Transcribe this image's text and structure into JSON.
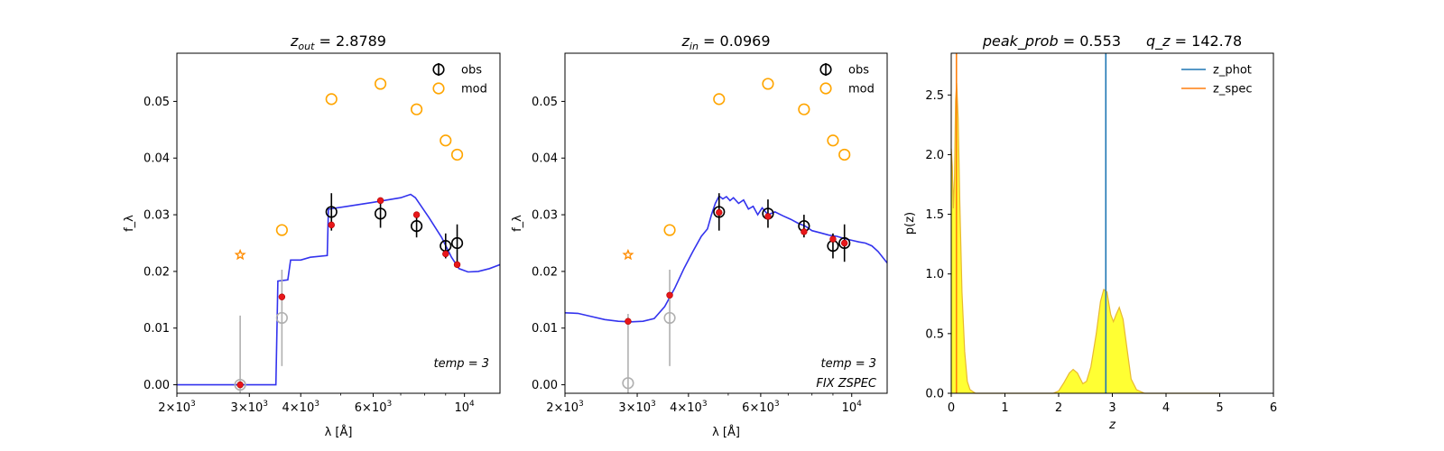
{
  "chart_data": [
    {
      "type": "scatter",
      "panel": "left",
      "title": "z_out = 2.8789",
      "title_parts": {
        "var": "z",
        "sub": "out",
        "rest": " = 2.8789"
      },
      "xlabel": "λ [Å]",
      "ylabel": "f_λ",
      "xscale": "log",
      "xlim": [
        2000,
        12200
      ],
      "ylim": [
        -0.0015,
        0.0585
      ],
      "xticks": [
        {
          "value": 2000,
          "mant": "2",
          "exp": "3"
        },
        {
          "value": 3000,
          "mant": "3",
          "exp": "3"
        },
        {
          "value": 4000,
          "mant": "4",
          "exp": "3"
        },
        {
          "value": 6000,
          "mant": "6",
          "exp": "3"
        },
        {
          "value": 10000,
          "mant": "10",
          "exp": "4",
          "plain": true
        }
      ],
      "yticks": [
        0.0,
        0.01,
        0.02,
        0.03,
        0.04,
        0.05
      ],
      "ytick_labels": [
        "0.00",
        "0.01",
        "0.02",
        "0.03",
        "0.04",
        "0.05"
      ],
      "legend": {
        "position": "top-right",
        "entries": [
          "obs",
          "mod"
        ]
      },
      "annotations": [
        "temp = 3"
      ],
      "obs": [
        {
          "x": 2850,
          "y": 0.0,
          "err": 0.0122,
          "faded": true
        },
        {
          "x": 3600,
          "y": 0.0118,
          "err": 0.0085,
          "faded": true
        },
        {
          "x": 4750,
          "y": 0.0305,
          "err": 0.0033
        },
        {
          "x": 6250,
          "y": 0.0302,
          "err": 0.0025
        },
        {
          "x": 7650,
          "y": 0.028,
          "err": 0.002
        },
        {
          "x": 9000,
          "y": 0.0245,
          "err": 0.0022
        },
        {
          "x": 9600,
          "y": 0.025,
          "err": 0.0033
        }
      ],
      "mod": [
        {
          "x": 3600,
          "y": 0.0273
        },
        {
          "x": 4750,
          "y": 0.0504
        },
        {
          "x": 6250,
          "y": 0.0531
        },
        {
          "x": 7650,
          "y": 0.0486
        },
        {
          "x": 9000,
          "y": 0.0431
        },
        {
          "x": 9600,
          "y": 0.0406
        }
      ],
      "star": [
        {
          "x": 2850,
          "y": 0.0229
        }
      ],
      "model_points": [
        {
          "x": 2850,
          "y": 0.0
        },
        {
          "x": 3600,
          "y": 0.0155
        },
        {
          "x": 4750,
          "y": 0.0282
        },
        {
          "x": 6250,
          "y": 0.0325
        },
        {
          "x": 7650,
          "y": 0.03
        },
        {
          "x": 9000,
          "y": 0.0231
        },
        {
          "x": 9600,
          "y": 0.0212
        }
      ],
      "sed": [
        [
          2000,
          0.0
        ],
        [
          3480,
          0.0
        ],
        [
          3520,
          0.0183
        ],
        [
          3720,
          0.0185
        ],
        [
          3780,
          0.022
        ],
        [
          4000,
          0.022
        ],
        [
          4220,
          0.0225
        ],
        [
          4640,
          0.0228
        ],
        [
          4670,
          0.031
        ],
        [
          5200,
          0.0315
        ],
        [
          6000,
          0.0322
        ],
        [
          7000,
          0.033
        ],
        [
          7400,
          0.0336
        ],
        [
          7600,
          0.033
        ],
        [
          8200,
          0.0295
        ],
        [
          8800,
          0.026
        ],
        [
          9300,
          0.0225
        ],
        [
          9700,
          0.0205
        ],
        [
          10200,
          0.0199
        ],
        [
          10800,
          0.02
        ],
        [
          11500,
          0.0205
        ],
        [
          12200,
          0.0212
        ]
      ]
    },
    {
      "type": "scatter",
      "panel": "middle",
      "title": "z_in = 0.0969",
      "title_parts": {
        "var": "z",
        "sub": "in",
        "rest": " = 0.0969"
      },
      "xlabel": "λ [Å]",
      "ylabel": "f_λ",
      "xscale": "log",
      "xlim": [
        2000,
        12200
      ],
      "ylim": [
        -0.0015,
        0.0585
      ],
      "xticks": [
        {
          "value": 2000,
          "mant": "2",
          "exp": "3"
        },
        {
          "value": 3000,
          "mant": "3",
          "exp": "3"
        },
        {
          "value": 4000,
          "mant": "4",
          "exp": "3"
        },
        {
          "value": 6000,
          "mant": "6",
          "exp": "3"
        },
        {
          "value": 10000,
          "mant": "10",
          "exp": "4",
          "plain": true
        }
      ],
      "yticks": [
        0.0,
        0.01,
        0.02,
        0.03,
        0.04,
        0.05
      ],
      "ytick_labels": [
        "0.00",
        "0.01",
        "0.02",
        "0.03",
        "0.04",
        "0.05"
      ],
      "legend": {
        "position": "top-right",
        "entries": [
          "obs",
          "mod"
        ]
      },
      "annotations": [
        "temp = 3",
        "FIX ZSPEC"
      ],
      "obs": [
        {
          "x": 2850,
          "y": 0.0003,
          "err": 0.0122,
          "faded": true
        },
        {
          "x": 3600,
          "y": 0.0118,
          "err": 0.0085,
          "faded": true
        },
        {
          "x": 4750,
          "y": 0.0305,
          "err": 0.0033
        },
        {
          "x": 6250,
          "y": 0.0302,
          "err": 0.0025
        },
        {
          "x": 7650,
          "y": 0.028,
          "err": 0.002
        },
        {
          "x": 9000,
          "y": 0.0245,
          "err": 0.0022
        },
        {
          "x": 9600,
          "y": 0.025,
          "err": 0.0033
        }
      ],
      "mod": [
        {
          "x": 3600,
          "y": 0.0273
        },
        {
          "x": 4750,
          "y": 0.0504
        },
        {
          "x": 6250,
          "y": 0.0531
        },
        {
          "x": 7650,
          "y": 0.0486
        },
        {
          "x": 9000,
          "y": 0.0431
        },
        {
          "x": 9600,
          "y": 0.0406
        }
      ],
      "star": [
        {
          "x": 2850,
          "y": 0.0229
        }
      ],
      "model_points": [
        {
          "x": 2850,
          "y": 0.0112
        },
        {
          "x": 3600,
          "y": 0.0158
        },
        {
          "x": 4750,
          "y": 0.0304
        },
        {
          "x": 6250,
          "y": 0.0297
        },
        {
          "x": 7650,
          "y": 0.027
        },
        {
          "x": 9000,
          "y": 0.0257
        },
        {
          "x": 9600,
          "y": 0.025
        }
      ],
      "sed": [
        [
          2000,
          0.0127
        ],
        [
          2150,
          0.0126
        ],
        [
          2300,
          0.0121
        ],
        [
          2500,
          0.0115
        ],
        [
          2700,
          0.0112
        ],
        [
          2900,
          0.0111
        ],
        [
          3100,
          0.0112
        ],
        [
          3300,
          0.0117
        ],
        [
          3500,
          0.0138
        ],
        [
          3700,
          0.017
        ],
        [
          3900,
          0.0205
        ],
        [
          4100,
          0.0235
        ],
        [
          4300,
          0.0262
        ],
        [
          4450,
          0.0275
        ],
        [
          4550,
          0.03
        ],
        [
          4650,
          0.032
        ],
        [
          4750,
          0.0333
        ],
        [
          4850,
          0.0328
        ],
        [
          4950,
          0.0332
        ],
        [
          5050,
          0.0325
        ],
        [
          5150,
          0.033
        ],
        [
          5300,
          0.032
        ],
        [
          5450,
          0.0326
        ],
        [
          5600,
          0.031
        ],
        [
          5750,
          0.0315
        ],
        [
          5900,
          0.03
        ],
        [
          6050,
          0.0312
        ],
        [
          6250,
          0.03
        ],
        [
          6500,
          0.0305
        ],
        [
          6800,
          0.0298
        ],
        [
          7100,
          0.0292
        ],
        [
          7400,
          0.0285
        ],
        [
          7700,
          0.028
        ],
        [
          8000,
          0.0272
        ],
        [
          8400,
          0.0268
        ],
        [
          8800,
          0.0264
        ],
        [
          9200,
          0.0262
        ],
        [
          9600,
          0.0258
        ],
        [
          10000,
          0.0255
        ],
        [
          10400,
          0.0252
        ],
        [
          10800,
          0.025
        ],
        [
          11200,
          0.0245
        ],
        [
          11600,
          0.0235
        ],
        [
          12200,
          0.0215
        ]
      ]
    },
    {
      "type": "area",
      "panel": "right",
      "title": "peak_prob = 0.553     q_z = 142.78",
      "title_parts": [
        {
          "label": "peak_prob",
          "value": " = 0.553"
        },
        {
          "label": "q_z",
          "value": " = 142.78"
        }
      ],
      "xlabel": "z",
      "ylabel": "p(z)",
      "xlim": [
        0,
        6
      ],
      "ylim": [
        0,
        2.85
      ],
      "xticks": [
        0,
        1,
        2,
        3,
        4,
        5,
        6
      ],
      "xtick_labels": [
        "0",
        "1",
        "2",
        "3",
        "4",
        "5",
        "6"
      ],
      "yticks": [
        0.0,
        0.5,
        1.0,
        1.5,
        2.0,
        2.5
      ],
      "ytick_labels": [
        "0.0",
        "0.5",
        "1.0",
        "1.5",
        "2.0",
        "2.5"
      ],
      "legend": {
        "position": "top-right",
        "entries": [
          "z_phot",
          "z_spec"
        ]
      },
      "z_phot": 2.8789,
      "z_spec": 0.0969,
      "colors": {
        "z_phot": "#1f77b4",
        "z_spec": "#ff7f0e",
        "fill": "#ffff33",
        "edge": "#e8b830"
      },
      "pdf": [
        [
          0.0,
          2.05
        ],
        [
          0.02,
          1.9
        ],
        [
          0.04,
          1.55
        ],
        [
          0.06,
          1.8
        ],
        [
          0.08,
          2.45
        ],
        [
          0.1,
          2.6
        ],
        [
          0.13,
          2.3
        ],
        [
          0.16,
          1.6
        ],
        [
          0.2,
          0.85
        ],
        [
          0.25,
          0.35
        ],
        [
          0.3,
          0.1
        ],
        [
          0.35,
          0.03
        ],
        [
          0.45,
          0.0
        ],
        [
          1.9,
          0.0
        ],
        [
          2.0,
          0.02
        ],
        [
          2.1,
          0.09
        ],
        [
          2.2,
          0.17
        ],
        [
          2.27,
          0.2
        ],
        [
          2.35,
          0.17
        ],
        [
          2.45,
          0.08
        ],
        [
          2.52,
          0.1
        ],
        [
          2.6,
          0.22
        ],
        [
          2.7,
          0.5
        ],
        [
          2.78,
          0.77
        ],
        [
          2.84,
          0.87
        ],
        [
          2.9,
          0.85
        ],
        [
          2.97,
          0.66
        ],
        [
          3.02,
          0.6
        ],
        [
          3.07,
          0.66
        ],
        [
          3.13,
          0.72
        ],
        [
          3.2,
          0.62
        ],
        [
          3.28,
          0.35
        ],
        [
          3.35,
          0.12
        ],
        [
          3.45,
          0.03
        ],
        [
          3.6,
          0.0
        ],
        [
          5.0,
          0.0
        ]
      ]
    }
  ]
}
